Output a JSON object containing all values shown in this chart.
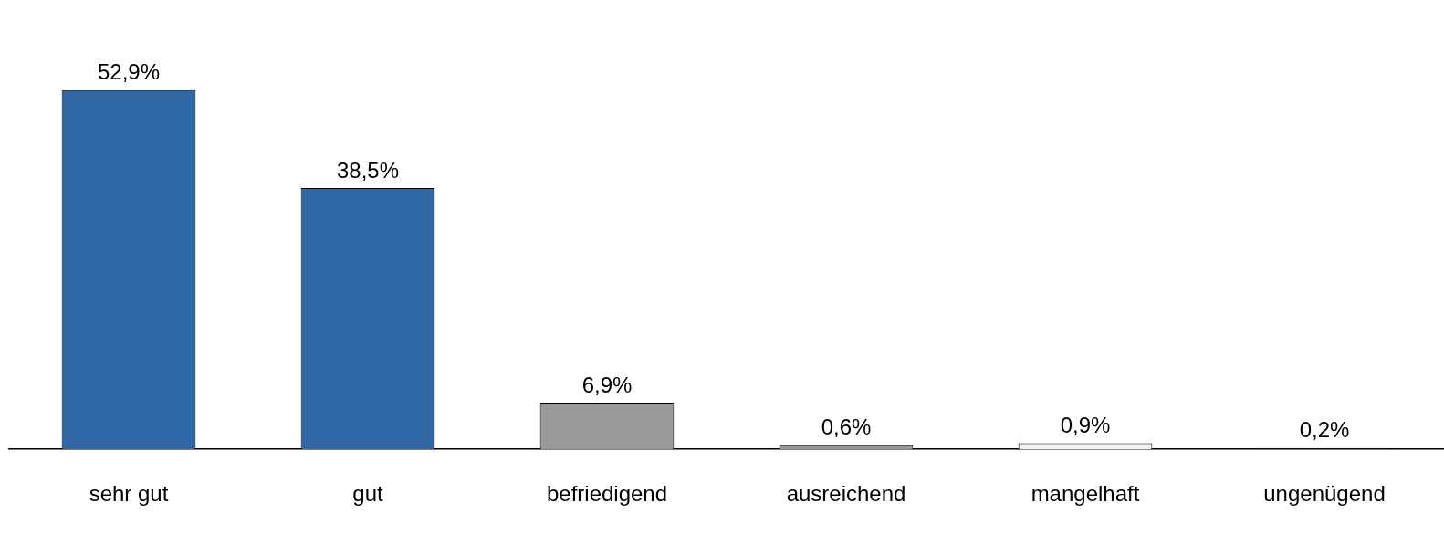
{
  "chart_data": {
    "type": "bar",
    "categories": [
      "sehr gut",
      "gut",
      "befriedigend",
      "ausreichend",
      "mangelhaft",
      "ungenügend"
    ],
    "values": [
      52.9,
      38.5,
      6.9,
      0.6,
      0.9,
      0.2
    ],
    "colors": [
      "#2e67a3",
      "#2e67a3",
      "#999999",
      "#999999",
      "#f2f2f2",
      "#1a1a1a"
    ],
    "value_labels": [
      "52,9%",
      "38,5%",
      "6,9%",
      "0,6%",
      "0,9%",
      "0,2%"
    ],
    "grid": false,
    "legend": false
  }
}
